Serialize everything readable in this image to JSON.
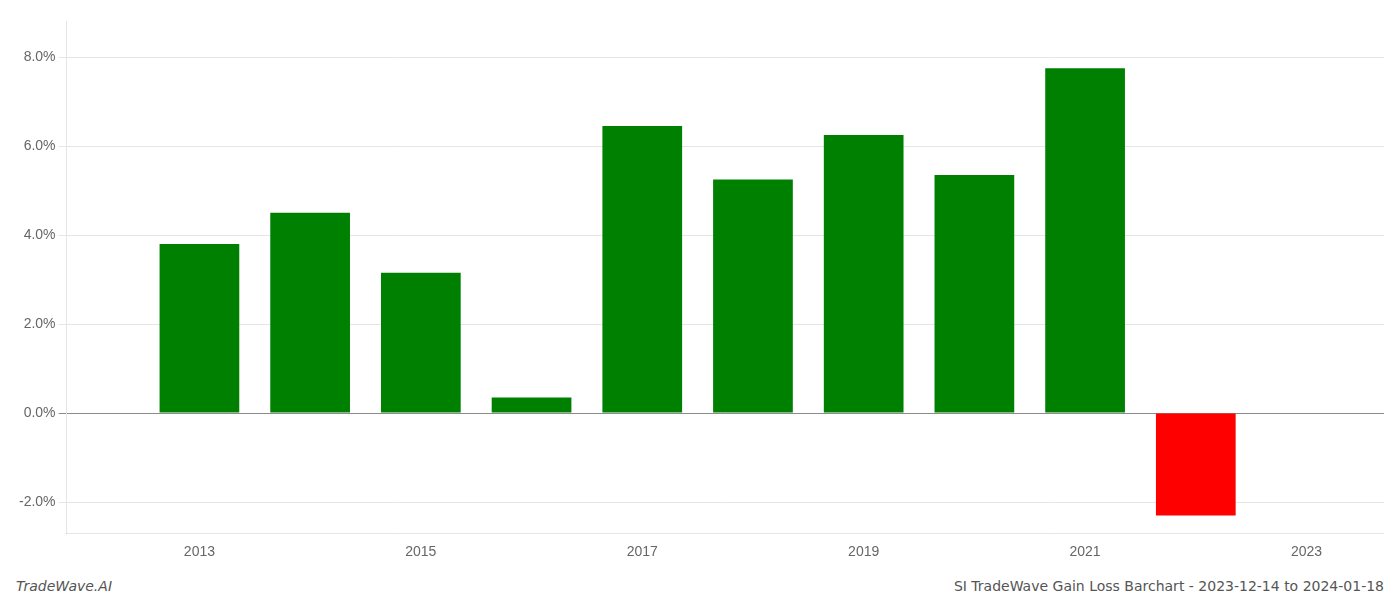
{
  "chart_data": {
    "type": "bar",
    "x": [
      2013,
      2014,
      2015,
      2016,
      2017,
      2018,
      2019,
      2020,
      2021,
      2022
    ],
    "values": [
      0.038,
      0.045,
      0.0315,
      0.0035,
      0.0645,
      0.0525,
      0.0625,
      0.0535,
      0.0775,
      -0.023
    ],
    "colors": [
      "#008000",
      "#008000",
      "#008000",
      "#008000",
      "#008000",
      "#008000",
      "#008000",
      "#008000",
      "#008000",
      "#ff0000"
    ],
    "xlim": [
      2011.8,
      2023.7
    ],
    "xticks": [
      2013,
      2015,
      2017,
      2019,
      2021,
      2023
    ],
    "ylim": [
      -0.027,
      0.088
    ],
    "yticks": [
      {
        "value": -0.02,
        "label": "-2.0%"
      },
      {
        "value": 0.0,
        "label": "0.0%"
      },
      {
        "value": 0.02,
        "label": "2.0%"
      },
      {
        "value": 0.04,
        "label": "4.0%"
      },
      {
        "value": 0.06,
        "label": "6.0%"
      },
      {
        "value": 0.08,
        "label": "8.0%"
      }
    ],
    "grid": true,
    "annotations": [
      "TradeWave.AI",
      "SI TradeWave Gain Loss Barchart - 2023-12-14 to 2024-01-18"
    ]
  }
}
